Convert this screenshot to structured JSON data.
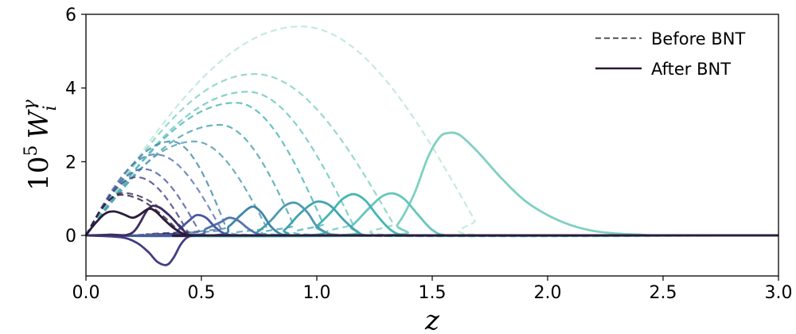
{
  "chart_data": {
    "type": "line",
    "xlabel": "z",
    "ylabel_base": "10",
    "ylabel_exp": "5",
    "ylabel_var": "W",
    "ylabel_sub": "i",
    "ylabel_sup": "γ",
    "xlim": [
      0.0,
      3.0
    ],
    "ylim": [
      -1.1,
      6.0
    ],
    "xticks": [
      0.0,
      0.5,
      1.0,
      1.5,
      2.0,
      2.5,
      3.0
    ],
    "xtick_labels": [
      "0.0",
      "0.5",
      "1.0",
      "1.5",
      "2.0",
      "2.5",
      "3.0"
    ],
    "yticks": [
      0,
      2,
      4,
      6
    ],
    "ytick_labels": [
      "0",
      "2",
      "4",
      "6"
    ],
    "grid": false,
    "legend_position": "top-right",
    "legend": [
      {
        "label": "Before BNT",
        "style": "dashed",
        "color": "#666666"
      },
      {
        "label": "After BNT",
        "style": "solid",
        "color": "#2a1a33"
      }
    ],
    "series": [
      {
        "color": "#2b1b3a",
        "before": {
          "peak_z": 0.15,
          "peak": 1.1,
          "end_z": 0.42
        },
        "after": [
          [
            0,
            0
          ],
          [
            0.03,
            0.25
          ],
          [
            0.08,
            0.58
          ],
          [
            0.12,
            0.65
          ],
          [
            0.16,
            0.58
          ],
          [
            0.2,
            0.48
          ],
          [
            0.23,
            0.55
          ],
          [
            0.27,
            0.72
          ],
          [
            0.3,
            0.66
          ],
          [
            0.34,
            0.42
          ],
          [
            0.38,
            0.2
          ],
          [
            0.42,
            0.05
          ],
          [
            0.46,
            0.0
          ],
          [
            0.6,
            0.0
          ]
        ]
      },
      {
        "color": "#3d2d5e",
        "before": {
          "peak_z": 0.16,
          "peak": 1.15,
          "end_z": 0.45
        },
        "after": [
          [
            0,
            0
          ],
          [
            0.1,
            0.02
          ],
          [
            0.2,
            0.07
          ],
          [
            0.27,
            0.72
          ],
          [
            0.31,
            0.78
          ],
          [
            0.36,
            0.55
          ],
          [
            0.42,
            0.15
          ],
          [
            0.46,
            0.0
          ],
          [
            0.6,
            0.0
          ]
        ]
      },
      {
        "color": "#423d84",
        "before": {
          "peak_z": 0.22,
          "peak": 1.58,
          "end_z": 0.45
        },
        "after": [
          [
            0,
            0
          ],
          [
            0.15,
            -0.05
          ],
          [
            0.22,
            -0.2
          ],
          [
            0.27,
            -0.45
          ],
          [
            0.31,
            -0.72
          ],
          [
            0.35,
            -0.8
          ],
          [
            0.38,
            -0.6
          ],
          [
            0.41,
            -0.25
          ],
          [
            0.44,
            -0.05
          ],
          [
            0.48,
            0.0
          ],
          [
            0.6,
            0.0
          ]
        ]
      },
      {
        "color": "#4a58a0",
        "before": {
          "peak_z": 0.25,
          "peak": 1.8,
          "end_z": 0.5
        },
        "after": [
          [
            0,
            0
          ],
          [
            0.36,
            0.0
          ],
          [
            0.4,
            0.15
          ],
          [
            0.45,
            0.42
          ],
          [
            0.48,
            0.55
          ],
          [
            0.52,
            0.48
          ],
          [
            0.56,
            0.22
          ],
          [
            0.6,
            0.05
          ],
          [
            0.65,
            0.0
          ],
          [
            0.8,
            0.0
          ]
        ]
      },
      {
        "color": "#5276ab",
        "before": {
          "peak_z": 0.3,
          "peak": 2.2,
          "end_z": 0.6
        },
        "after": [
          [
            0,
            0
          ],
          [
            0.46,
            0.0
          ],
          [
            0.52,
            0.18
          ],
          [
            0.58,
            0.35
          ],
          [
            0.62,
            0.48
          ],
          [
            0.66,
            0.4
          ],
          [
            0.7,
            0.2
          ],
          [
            0.74,
            0.05
          ],
          [
            0.78,
            0.0
          ],
          [
            0.9,
            0.0
          ]
        ]
      },
      {
        "color": "#3e86a8",
        "before": {
          "peak_z": 0.37,
          "peak": 2.55,
          "end_z": 0.62
        },
        "after": [
          [
            0,
            0
          ],
          [
            0.55,
            0.0
          ],
          [
            0.62,
            0.25
          ],
          [
            0.67,
            0.55
          ],
          [
            0.72,
            0.78
          ],
          [
            0.76,
            0.62
          ],
          [
            0.8,
            0.25
          ],
          [
            0.84,
            0.05
          ],
          [
            0.88,
            0.0
          ],
          [
            1.0,
            0.0
          ]
        ]
      },
      {
        "color": "#4e9ab0",
        "before": {
          "peak_z": 0.47,
          "peak": 2.55,
          "end_z": 0.8
        },
        "after": [
          [
            0,
            0
          ],
          [
            0.7,
            0.0
          ],
          [
            0.74,
            0.08
          ],
          [
            0.8,
            0.4
          ],
          [
            0.86,
            0.8
          ],
          [
            0.91,
            0.88
          ],
          [
            0.96,
            0.62
          ],
          [
            1.0,
            0.25
          ],
          [
            1.05,
            0.05
          ],
          [
            1.1,
            0.0
          ],
          [
            1.2,
            0.0
          ]
        ]
      },
      {
        "color": "#43a3b0",
        "before": {
          "peak_z": 0.58,
          "peak": 3.0,
          "end_z": 0.92
        },
        "after": [
          [
            0,
            0
          ],
          [
            0.8,
            0.0
          ],
          [
            0.86,
            0.15
          ],
          [
            0.92,
            0.55
          ],
          [
            0.97,
            0.82
          ],
          [
            1.01,
            0.92
          ],
          [
            1.06,
            0.8
          ],
          [
            1.12,
            0.4
          ],
          [
            1.18,
            0.08
          ],
          [
            1.22,
            0.0
          ],
          [
            1.35,
            0.0
          ]
        ]
      },
      {
        "color": "#45b4b4",
        "before": {
          "peak_z": 0.65,
          "peak": 3.6,
          "end_z": 1.05
        },
        "after": [
          [
            0,
            0
          ],
          [
            0.95,
            0.0
          ],
          [
            1.0,
            0.25
          ],
          [
            1.06,
            0.62
          ],
          [
            1.11,
            0.98
          ],
          [
            1.16,
            1.12
          ],
          [
            1.21,
            0.95
          ],
          [
            1.26,
            0.55
          ],
          [
            1.32,
            0.15
          ],
          [
            1.38,
            0.0
          ],
          [
            1.5,
            0.0
          ]
        ]
      },
      {
        "color": "#66c6bc",
        "before": {
          "peak_z": 0.7,
          "peak": 3.9,
          "end_z": 1.18
        },
        "after": [
          [
            0,
            0
          ],
          [
            1.08,
            0.0
          ],
          [
            1.15,
            0.25
          ],
          [
            1.22,
            0.7
          ],
          [
            1.28,
            1.05
          ],
          [
            1.33,
            1.14
          ],
          [
            1.38,
            0.98
          ],
          [
            1.44,
            0.55
          ],
          [
            1.5,
            0.15
          ],
          [
            1.56,
            0.0
          ],
          [
            1.7,
            0.0
          ]
        ]
      },
      {
        "color": "#7fd0c2",
        "before": {
          "peak_z": 0.73,
          "peak": 4.38,
          "end_z": 1.36
        },
        "after": [
          [
            0,
            0
          ],
          [
            1.28,
            0.0
          ],
          [
            1.35,
            0.3
          ],
          [
            1.42,
            1.1
          ],
          [
            1.48,
            2.1
          ],
          [
            1.53,
            2.65
          ],
          [
            1.57,
            2.78
          ],
          [
            1.62,
            2.72
          ],
          [
            1.7,
            2.25
          ],
          [
            1.8,
            1.55
          ],
          [
            1.9,
            0.95
          ],
          [
            2.0,
            0.55
          ],
          [
            2.1,
            0.28
          ],
          [
            2.2,
            0.12
          ],
          [
            2.3,
            0.05
          ],
          [
            2.4,
            0.02
          ],
          [
            2.5,
            0.0
          ],
          [
            3.0,
            0.0
          ]
        ]
      },
      {
        "color": "#b6e6d2",
        "before": {
          "peak_z": 0.93,
          "peak": 5.67,
          "end_z": 1.72
        },
        "after": []
      }
    ]
  }
}
